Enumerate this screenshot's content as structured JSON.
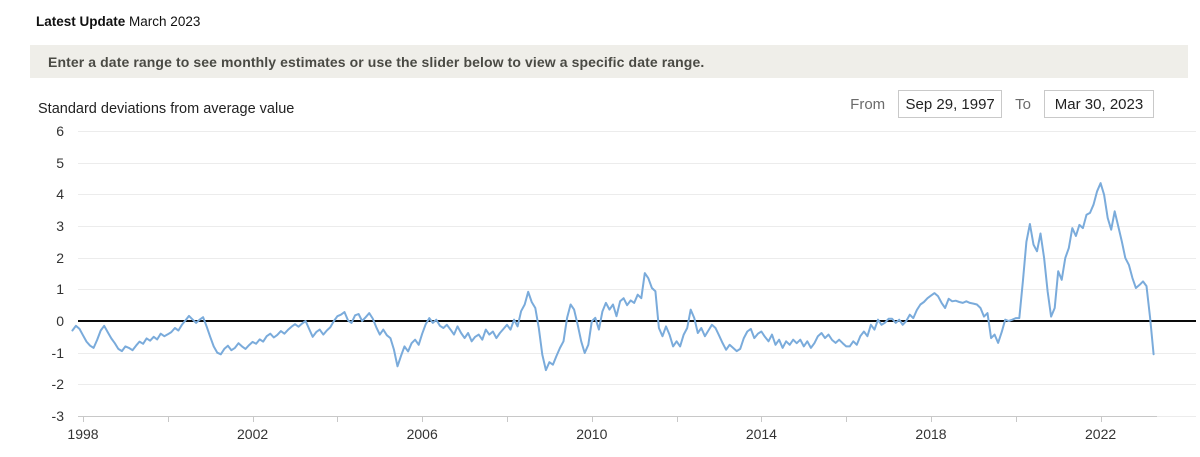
{
  "header": {
    "label": "Latest Update",
    "value": "March 2023"
  },
  "notice": {
    "text": "Enter a date range to see monthly estimates or use the slider below to view a specific date range."
  },
  "controls": {
    "from_label": "From",
    "from_value": "Sep 29, 1997",
    "to_label": "To",
    "to_value": "Mar 30, 2023"
  },
  "colors": {
    "line": "#7aabdb",
    "zero_line": "#0a0a0a",
    "gridline": "#ececec",
    "axis": "#c8c8c8",
    "notice_bg": "#efeee9",
    "notice_text": "#4a4a44",
    "label": "#333333",
    "muted_label": "#6b6b6b",
    "input_border": "#c9c9c9"
  },
  "chart_data": {
    "type": "line",
    "title": "Standard deviations from average value",
    "xlabel": "",
    "ylabel": "Standard deviations from average value",
    "frequency": "monthly",
    "start": "1997-09",
    "end": "2023-03",
    "ylim": [
      -3,
      6
    ],
    "y_ticks": [
      6,
      5,
      4,
      3,
      2,
      1,
      0,
      -1,
      -2,
      -3
    ],
    "x_tick_years": [
      1998,
      2000,
      2002,
      2004,
      2006,
      2008,
      2010,
      2012,
      2014,
      2016,
      2018,
      2020,
      2022
    ],
    "x_label_years": [
      1998,
      2002,
      2006,
      2010,
      2014,
      2018,
      2022
    ],
    "zero_line": true,
    "grid": true,
    "legend": "none",
    "values": [
      -0.3,
      -0.15,
      -0.25,
      -0.45,
      -0.65,
      -0.78,
      -0.85,
      -0.6,
      -0.3,
      -0.15,
      -0.35,
      -0.55,
      -0.7,
      -0.88,
      -0.95,
      -0.8,
      -0.85,
      -0.92,
      -0.78,
      -0.65,
      -0.72,
      -0.55,
      -0.62,
      -0.5,
      -0.58,
      -0.4,
      -0.48,
      -0.42,
      -0.35,
      -0.22,
      -0.3,
      -0.12,
      0.02,
      0.16,
      0.05,
      -0.06,
      0.04,
      0.12,
      -0.18,
      -0.5,
      -0.8,
      -1.0,
      -1.05,
      -0.88,
      -0.78,
      -0.92,
      -0.85,
      -0.7,
      -0.8,
      -0.88,
      -0.76,
      -0.66,
      -0.72,
      -0.58,
      -0.65,
      -0.48,
      -0.4,
      -0.52,
      -0.44,
      -0.32,
      -0.4,
      -0.28,
      -0.18,
      -0.1,
      -0.18,
      -0.08,
      0.0,
      -0.25,
      -0.5,
      -0.35,
      -0.27,
      -0.43,
      -0.3,
      -0.2,
      0.0,
      0.15,
      0.2,
      0.28,
      0.02,
      -0.06,
      0.18,
      0.22,
      0.0,
      0.12,
      0.25,
      0.08,
      -0.2,
      -0.43,
      -0.27,
      -0.45,
      -0.54,
      -0.9,
      -1.43,
      -1.1,
      -0.8,
      -0.96,
      -0.7,
      -0.59,
      -0.75,
      -0.4,
      -0.1,
      0.09,
      -0.06,
      0.04,
      -0.15,
      -0.22,
      -0.12,
      -0.27,
      -0.43,
      -0.17,
      -0.38,
      -0.54,
      -0.38,
      -0.64,
      -0.5,
      -0.43,
      -0.59,
      -0.27,
      -0.43,
      -0.33,
      -0.54,
      -0.38,
      -0.25,
      -0.12,
      -0.27,
      0.04,
      -0.17,
      0.31,
      0.52,
      0.92,
      0.6,
      0.41,
      -0.22,
      -1.06,
      -1.55,
      -1.3,
      -1.38,
      -1.1,
      -0.85,
      -0.64,
      0.1,
      0.52,
      0.36,
      -0.12,
      -0.64,
      -1.01,
      -0.75,
      -0.01,
      0.1,
      -0.27,
      0.3,
      0.57,
      0.36,
      0.52,
      0.15,
      0.62,
      0.72,
      0.5,
      0.65,
      0.57,
      0.83,
      0.72,
      1.51,
      1.35,
      1.04,
      0.94,
      -0.22,
      -0.48,
      -0.17,
      -0.43,
      -0.8,
      -0.64,
      -0.8,
      -0.43,
      -0.22,
      0.36,
      0.09,
      -0.38,
      -0.22,
      -0.48,
      -0.3,
      -0.12,
      -0.22,
      -0.45,
      -0.69,
      -0.91,
      -0.75,
      -0.85,
      -0.95,
      -0.88,
      -0.55,
      -0.33,
      -0.25,
      -0.54,
      -0.4,
      -0.33,
      -0.5,
      -0.64,
      -0.43,
      -0.75,
      -0.59,
      -0.85,
      -0.64,
      -0.75,
      -0.59,
      -0.7,
      -0.59,
      -0.8,
      -0.64,
      -0.85,
      -0.7,
      -0.48,
      -0.38,
      -0.54,
      -0.43,
      -0.6,
      -0.69,
      -0.59,
      -0.7,
      -0.8,
      -0.8,
      -0.64,
      -0.75,
      -0.48,
      -0.33,
      -0.48,
      -0.12,
      -0.27,
      0.04,
      -0.12,
      -0.05,
      0.07,
      0.07,
      -0.06,
      0.04,
      -0.12,
      0.0,
      0.2,
      0.09,
      0.35,
      0.52,
      0.6,
      0.72,
      0.8,
      0.88,
      0.78,
      0.57,
      0.41,
      0.7,
      0.62,
      0.64,
      0.6,
      0.57,
      0.62,
      0.57,
      0.55,
      0.52,
      0.41,
      0.14,
      0.25,
      -0.54,
      -0.43,
      -0.69,
      -0.35,
      0.04,
      0.0,
      0.04,
      0.09,
      0.09,
      1.26,
      2.5,
      3.06,
      2.41,
      2.2,
      2.76,
      1.99,
      0.94,
      0.14,
      0.41,
      1.57,
      1.3,
      1.99,
      2.3,
      2.93,
      2.68,
      3.03,
      2.93,
      3.35,
      3.41,
      3.67,
      4.09,
      4.35,
      3.98,
      3.25,
      2.88,
      3.46,
      2.98,
      2.51,
      1.99,
      1.77,
      1.36,
      1.04,
      1.14,
      1.25,
      1.1,
      0.1,
      -1.05
    ]
  }
}
